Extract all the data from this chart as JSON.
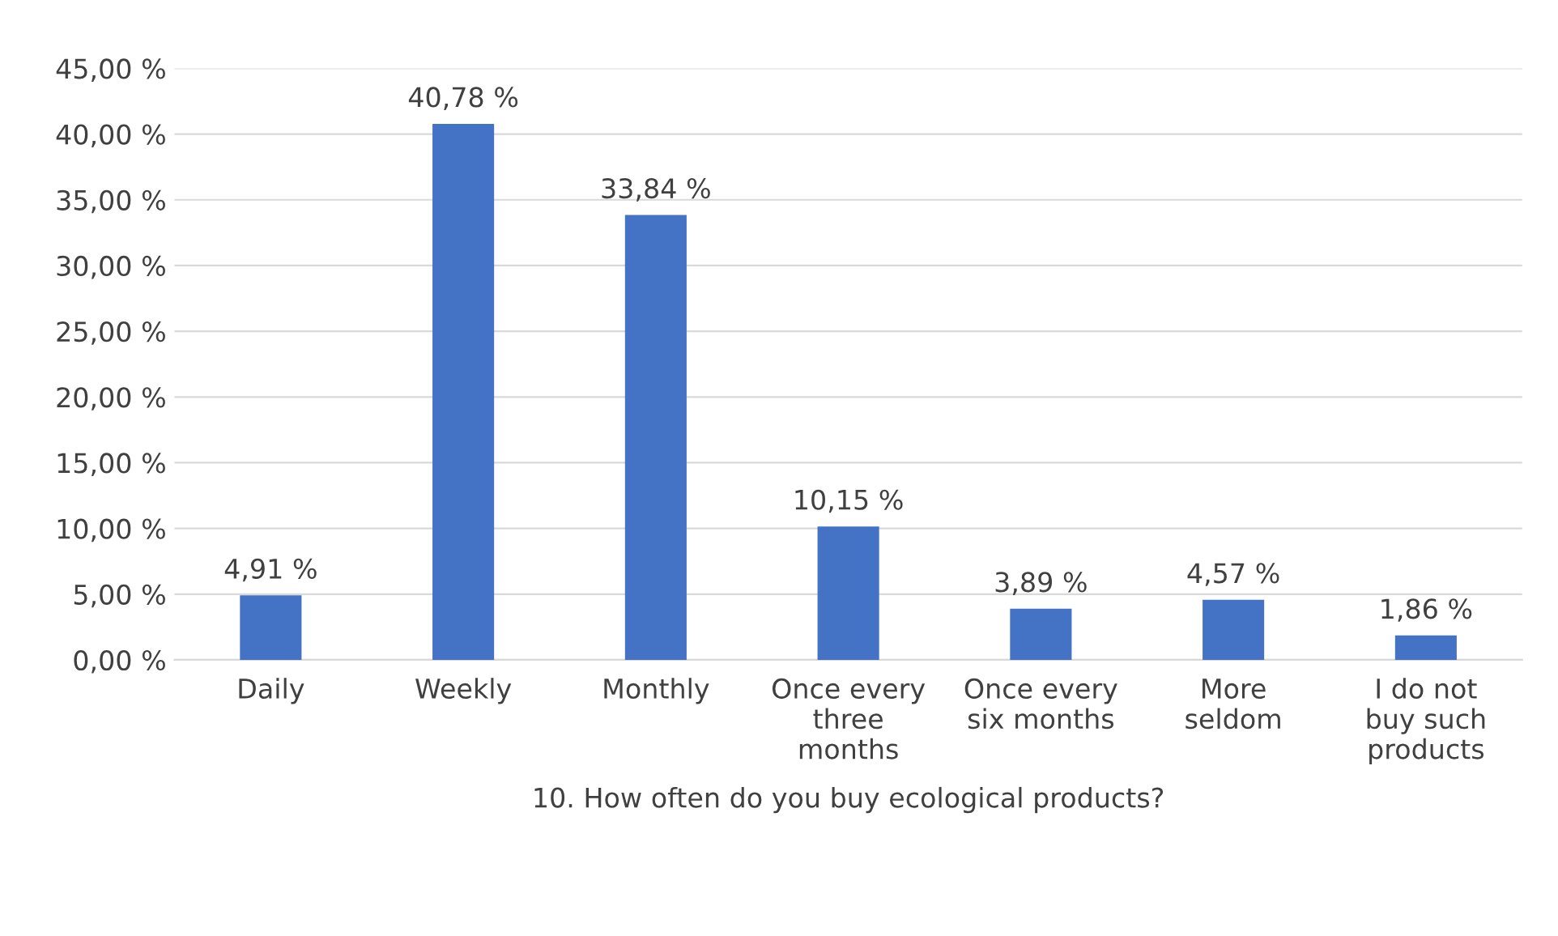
{
  "chart_data": {
    "type": "bar",
    "xlabel": "10. How often do you buy ecological products?",
    "categories": [
      "Daily",
      "Weekly",
      "Monthly",
      "Once every three months",
      "Once every six months",
      "More seldom",
      "I do not buy such products"
    ],
    "values": [
      4.91,
      40.78,
      33.84,
      10.15,
      3.89,
      4.57,
      1.86
    ],
    "value_labels": [
      "4,91 %",
      "40,78 %",
      "33,84 %",
      "10,15 %",
      "3,89 %",
      "4,57 %",
      "1,86 %"
    ],
    "color": "#4472c4",
    "ylim": [
      0,
      45
    ],
    "yticks": [
      {
        "value": 0,
        "label": "0,00 %"
      },
      {
        "value": 5,
        "label": "5,00 %"
      },
      {
        "value": 10,
        "label": "10,00 %"
      },
      {
        "value": 15,
        "label": "15,00 %"
      },
      {
        "value": 20,
        "label": "20,00 %"
      },
      {
        "value": 25,
        "label": "25,00 %"
      },
      {
        "value": 30,
        "label": "30,00 %"
      },
      {
        "value": 35,
        "label": "35,00 %"
      },
      {
        "value": 40,
        "label": "40,00 %"
      },
      {
        "value": 45,
        "label": "45,00 %"
      }
    ],
    "grid": "y",
    "legend": false
  }
}
